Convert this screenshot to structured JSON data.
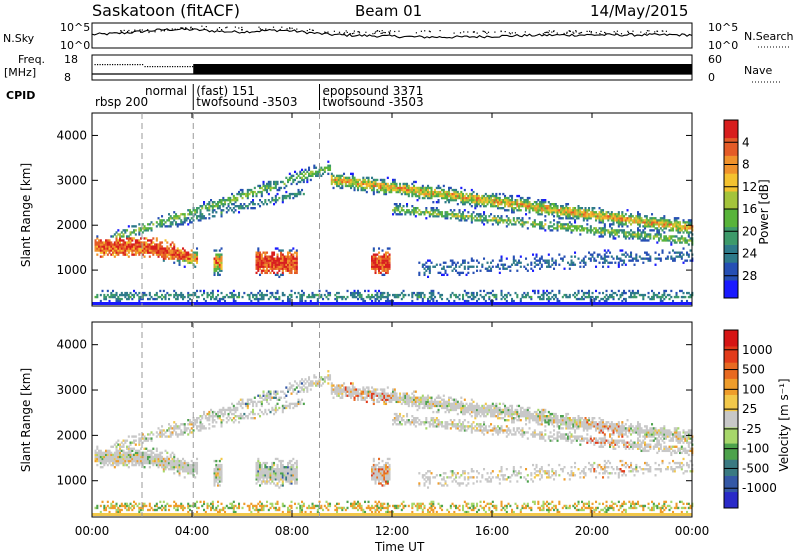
{
  "header": {
    "station": "Saskatoon (fitACF)",
    "beam": "Beam 01",
    "date": "14/May/2015"
  },
  "summary": {
    "nsky_label": "N.Sky",
    "nsearch_label": "N.Search",
    "left_ticks": [
      "10^5",
      "10^0"
    ],
    "right_ticks": [
      "10^5",
      "10^0"
    ],
    "freq_label": "Freq.",
    "freq_unit": "[MHz]",
    "freq_ticks": [
      "18",
      "8"
    ],
    "nave_label": "Nave",
    "nave_ticks": [
      "60",
      "0"
    ],
    "cpid_label": "CPID"
  },
  "cpid_segments": [
    {
      "start_h": 0.0,
      "end_h": 4.05,
      "lines": [
        "rbsp 200"
      ],
      "line_row": [
        1
      ]
    },
    {
      "start_h": 2.0,
      "end_h": 4.05,
      "lines": [
        "normal"
      ],
      "line_row": [
        0
      ]
    },
    {
      "start_h": 4.05,
      "end_h": 9.1,
      "lines": [
        "(fast) 151",
        "twofsound -3503"
      ],
      "line_row": [
        0,
        1
      ]
    },
    {
      "start_h": 9.1,
      "end_h": 24.0,
      "lines": [
        "epopsound 3371",
        "twofsound -3503"
      ],
      "line_row": [
        0,
        1
      ]
    }
  ],
  "chart_data": [
    {
      "type": "heatmap",
      "panel": "power",
      "ylabel": "Slant Range [km]",
      "xlim": [
        "00:00",
        "24:00"
      ],
      "ylim": [
        200,
        4500
      ],
      "yticks": [
        1000,
        2000,
        3000,
        4000
      ],
      "colorbar": {
        "label": "Power [dB]",
        "ticks": [
          "4",
          "8",
          "12",
          "16",
          "20",
          "24",
          "28"
        ],
        "colors": [
          "#1a1aff",
          "#264fb4",
          "#2e7a8a",
          "#3d9a6a",
          "#58b43a",
          "#a4c43b",
          "#f4c22f",
          "#f0922b",
          "#e45b27",
          "#d81e1e"
        ]
      }
    },
    {
      "type": "heatmap",
      "panel": "velocity",
      "ylabel": "Slant Range [km]",
      "xlabel": "Time UT",
      "xlim": [
        "00:00",
        "24:00"
      ],
      "ylim": [
        200,
        4500
      ],
      "yticks": [
        1000,
        2000,
        3000,
        4000
      ],
      "xticks": [
        "00:00",
        "04:00",
        "08:00",
        "12:00",
        "16:00",
        "20:00",
        "00:00"
      ],
      "colorbar": {
        "label": "Velocity [m s⁻¹]",
        "ticks": [
          "1000",
          "500",
          "100",
          "25",
          "-25",
          "-100",
          "-500",
          "-1000"
        ],
        "colors": [
          "#2a2ac8",
          "#3458a6",
          "#3a7a82",
          "#4da24c",
          "#a7d76b",
          "#c8c8c8",
          "#f2c84a",
          "#ef9d2b",
          "#e86a21",
          "#e23b1a",
          "#d61515"
        ]
      }
    }
  ]
}
